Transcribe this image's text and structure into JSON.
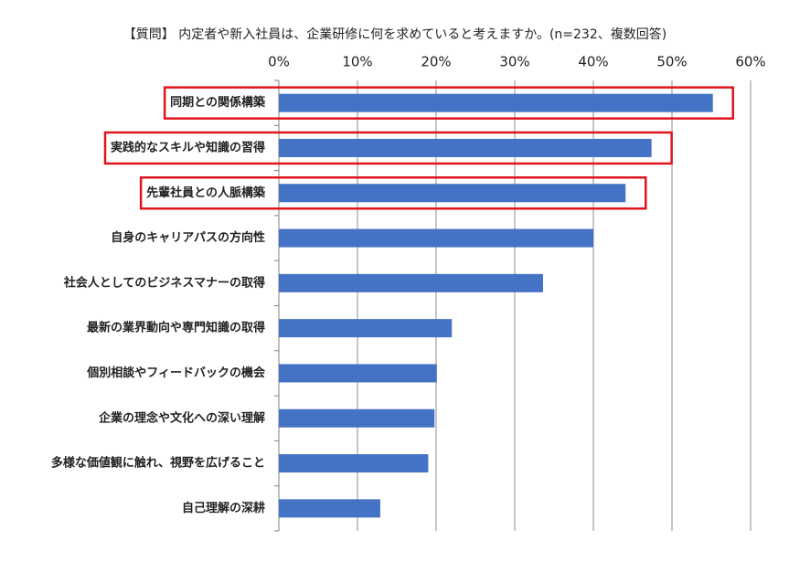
{
  "chart_data": {
    "type": "hbar",
    "title": "【質問】 内定者や新入社員は、企業研修に何を求めていると考えますか。(n=232、複数回答)",
    "categories": [
      "同期との関係構築",
      "実践的なスキルや知識の習得",
      "先輩社員との人脈構築",
      "自身のキャリアパスの方向性",
      "社会人としてのビジネスマナーの取得",
      "最新の業界動向や専門知識の取得",
      "個別相談やフィードバックの機会",
      "企業の理念や文化への深い理解",
      "多様な価値観に触れ、視野を広げること",
      "自己理解の深耕"
    ],
    "values": [
      55.2,
      47.4,
      44.1,
      40.0,
      33.6,
      22.0,
      20.1,
      19.8,
      19.0,
      12.9
    ],
    "color": "#4472c4",
    "xlim": [
      0,
      60
    ],
    "xticks": [
      {
        "value": 0,
        "label": "0%"
      },
      {
        "value": 10,
        "label": "10%"
      },
      {
        "value": 20,
        "label": "20%"
      },
      {
        "value": 30,
        "label": "30%"
      },
      {
        "value": 40,
        "label": "40%"
      },
      {
        "value": 50,
        "label": "50%"
      },
      {
        "value": 60,
        "label": "60%"
      }
    ],
    "grid": true,
    "highlighted": [
      0,
      1,
      2
    ],
    "highlight_color": "#e0141e"
  }
}
